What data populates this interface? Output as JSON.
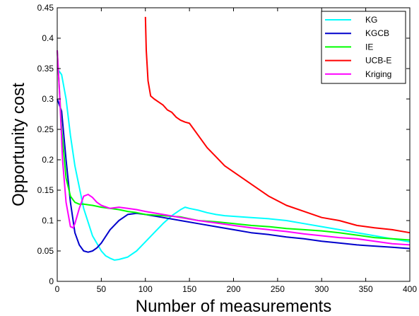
{
  "chart_data": {
    "type": "line",
    "xlabel": "Number of measurements",
    "ylabel": "Opportunity cost",
    "xlim": [
      0,
      400
    ],
    "ylim": [
      0,
      0.45
    ],
    "xticks": [
      "0",
      "50",
      "100",
      "150",
      "200",
      "250",
      "300",
      "350",
      "400"
    ],
    "yticks": [
      "0",
      "0.05",
      "0.1",
      "0.15",
      "0.2",
      "0.25",
      "0.3",
      "0.35",
      "0.4",
      "0.45"
    ],
    "grid": false,
    "legend_position": "top-right",
    "series": [
      {
        "name": "KG",
        "color": "#00ffff",
        "x": [
          0,
          5,
          10,
          15,
          20,
          30,
          40,
          50,
          55,
          60,
          65,
          70,
          80,
          90,
          100,
          110,
          120,
          130,
          140,
          145,
          150,
          160,
          170,
          180,
          190,
          200,
          220,
          240,
          260,
          280,
          300,
          320,
          340,
          360,
          380,
          400
        ],
        "y": [
          0.35,
          0.34,
          0.3,
          0.24,
          0.19,
          0.12,
          0.075,
          0.05,
          0.042,
          0.038,
          0.035,
          0.036,
          0.04,
          0.05,
          0.065,
          0.08,
          0.095,
          0.108,
          0.118,
          0.122,
          0.12,
          0.117,
          0.113,
          0.11,
          0.108,
          0.107,
          0.105,
          0.103,
          0.1,
          0.095,
          0.09,
          0.085,
          0.08,
          0.075,
          0.07,
          0.065
        ]
      },
      {
        "name": "KGCB",
        "color": "#0000cc",
        "x": [
          0,
          5,
          10,
          15,
          20,
          25,
          30,
          35,
          40,
          45,
          50,
          60,
          70,
          80,
          90,
          100,
          120,
          140,
          160,
          180,
          200,
          220,
          240,
          260,
          280,
          300,
          320,
          340,
          360,
          380,
          400
        ],
        "y": [
          0.3,
          0.28,
          0.2,
          0.13,
          0.08,
          0.06,
          0.05,
          0.048,
          0.05,
          0.055,
          0.063,
          0.085,
          0.1,
          0.11,
          0.112,
          0.11,
          0.105,
          0.1,
          0.095,
          0.09,
          0.085,
          0.08,
          0.077,
          0.073,
          0.07,
          0.066,
          0.063,
          0.06,
          0.058,
          0.056,
          0.054
        ]
      },
      {
        "name": "IE",
        "color": "#00ff00",
        "x": [
          0,
          5,
          10,
          15,
          20,
          25,
          30,
          40,
          50,
          60,
          70,
          80,
          90,
          100,
          120,
          140,
          160,
          180,
          200,
          220,
          240,
          260,
          280,
          300,
          320,
          340,
          360,
          380,
          400
        ],
        "y": [
          0.38,
          0.25,
          0.17,
          0.14,
          0.13,
          0.127,
          0.127,
          0.125,
          0.122,
          0.12,
          0.118,
          0.115,
          0.113,
          0.11,
          0.108,
          0.106,
          0.1,
          0.098,
          0.095,
          0.092,
          0.09,
          0.087,
          0.085,
          0.083,
          0.08,
          0.076,
          0.072,
          0.07,
          0.068
        ]
      },
      {
        "name": "UCB-E",
        "color": "#ff0000",
        "x": [
          100,
          101,
          103,
          106,
          110,
          115,
          120,
          125,
          130,
          135,
          140,
          145,
          150,
          155,
          160,
          170,
          180,
          190,
          200,
          210,
          220,
          240,
          260,
          280,
          300,
          320,
          340,
          360,
          380,
          400
        ],
        "y": [
          0.435,
          0.38,
          0.33,
          0.305,
          0.3,
          0.295,
          0.29,
          0.282,
          0.278,
          0.27,
          0.265,
          0.262,
          0.26,
          0.25,
          0.24,
          0.22,
          0.205,
          0.19,
          0.18,
          0.17,
          0.16,
          0.14,
          0.125,
          0.115,
          0.105,
          0.1,
          0.092,
          0.088,
          0.085,
          0.08
        ]
      },
      {
        "name": "Kriging",
        "color": "#ff00ff",
        "x": [
          0,
          3,
          6,
          10,
          15,
          18,
          20,
          25,
          30,
          35,
          40,
          45,
          50,
          60,
          70,
          80,
          90,
          100,
          120,
          140,
          160,
          180,
          200,
          220,
          240,
          260,
          280,
          300,
          320,
          340,
          360,
          380,
          400
        ],
        "y": [
          0.38,
          0.3,
          0.2,
          0.13,
          0.09,
          0.088,
          0.095,
          0.12,
          0.14,
          0.143,
          0.138,
          0.13,
          0.125,
          0.12,
          0.122,
          0.12,
          0.118,
          0.115,
          0.11,
          0.105,
          0.1,
          0.096,
          0.092,
          0.088,
          0.085,
          0.082,
          0.078,
          0.075,
          0.072,
          0.07,
          0.066,
          0.062,
          0.06
        ]
      }
    ]
  }
}
